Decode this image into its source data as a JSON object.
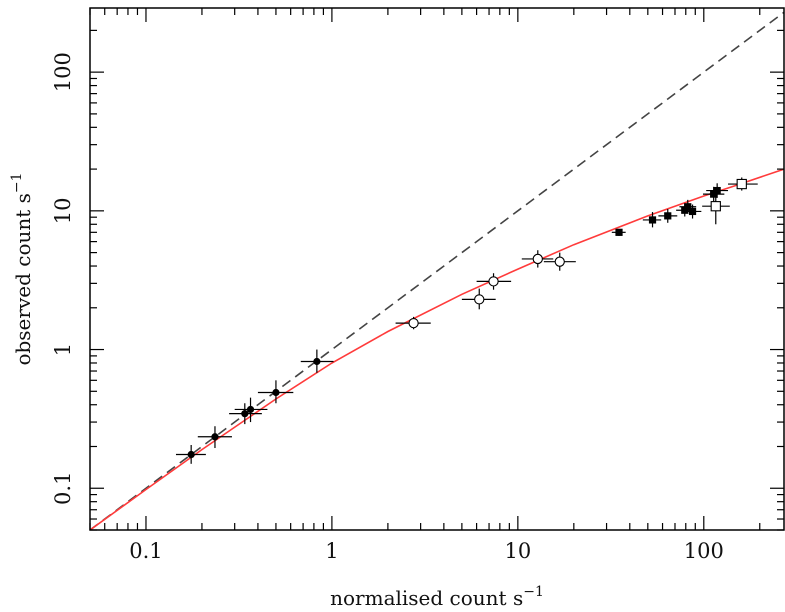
{
  "chart_data": {
    "type": "scatter",
    "xscale": "log",
    "yscale": "log",
    "xlim": [
      0.05,
      270
    ],
    "ylim": [
      0.05,
      290
    ],
    "x_tick_labels": [
      {
        "value": 0.1,
        "label": "0.1"
      },
      {
        "value": 1,
        "label": "1"
      },
      {
        "value": 10,
        "label": "10"
      },
      {
        "value": 100,
        "label": "100"
      }
    ],
    "y_tick_labels": [
      {
        "value": 0.1,
        "label": "0.1"
      },
      {
        "value": 1,
        "label": "1"
      },
      {
        "value": 10,
        "label": "10"
      },
      {
        "value": 100,
        "label": "100"
      }
    ],
    "xlabel": {
      "text": "normalised count s",
      "sup": "−1"
    },
    "ylabel": {
      "text": "observed count s",
      "sup": "−1"
    },
    "grid": false,
    "legend": "none",
    "lines": [
      {
        "style": "dashed",
        "color": "#444444",
        "points": [
          [
            0.05,
            0.05
          ],
          [
            270,
            270
          ]
        ]
      },
      {
        "style": "solid",
        "color": "#ff3b3b",
        "points": [
          [
            0.05,
            0.05
          ],
          [
            0.1,
            0.098
          ],
          [
            0.2,
            0.19
          ],
          [
            0.5,
            0.44
          ],
          [
            1,
            0.8
          ],
          [
            2,
            1.35
          ],
          [
            5,
            2.5
          ],
          [
            10,
            3.8
          ],
          [
            20,
            5.7
          ],
          [
            50,
            9.2
          ],
          [
            100,
            12.8
          ],
          [
            150,
            15.3
          ],
          [
            270,
            20
          ]
        ]
      }
    ],
    "series": [
      {
        "marker": "filled-circle",
        "points": [
          {
            "x": 0.175,
            "y": 0.175,
            "xerr": [
              0.145,
              0.21
            ],
            "yerr": [
              0.15,
              0.205
            ]
          },
          {
            "x": 0.235,
            "y": 0.235,
            "xerr": [
              0.19,
              0.29
            ],
            "yerr": [
              0.195,
              0.28
            ]
          },
          {
            "x": 0.34,
            "y": 0.345,
            "xerr": [
              0.28,
              0.42
            ],
            "yerr": [
              0.29,
              0.41
            ]
          },
          {
            "x": 0.365,
            "y": 0.37,
            "xerr": [
              0.3,
              0.45
            ],
            "yerr": [
              0.3,
              0.45
            ]
          },
          {
            "x": 0.5,
            "y": 0.49,
            "xerr": [
              0.4,
              0.62
            ],
            "yerr": [
              0.41,
              0.6
            ]
          },
          {
            "x": 0.83,
            "y": 0.82,
            "xerr": [
              0.68,
              1.02
            ],
            "yerr": [
              0.68,
              1.0
            ]
          }
        ]
      },
      {
        "marker": "open-circle",
        "points": [
          {
            "x": 2.75,
            "y": 1.55,
            "xerr": [
              2.2,
              3.4
            ],
            "yerr": [
              1.4,
              1.72
            ]
          },
          {
            "x": 6.2,
            "y": 2.3,
            "xerr": [
              5.0,
              7.6
            ],
            "yerr": [
              1.95,
              2.75
            ]
          },
          {
            "x": 7.4,
            "y": 3.1,
            "xerr": [
              6.0,
              9.2
            ],
            "yerr": [
              2.7,
              3.55
            ]
          },
          {
            "x": 12.8,
            "y": 4.5,
            "xerr": [
              10.5,
              15.5
            ],
            "yerr": [
              3.9,
              5.2
            ]
          },
          {
            "x": 16.8,
            "y": 4.3,
            "xerr": [
              13.8,
              20.5
            ],
            "yerr": [
              3.7,
              5.0
            ]
          }
        ]
      },
      {
        "marker": "filled-square",
        "points": [
          {
            "x": 35,
            "y": 7.0,
            "xerr": [
              32,
              38
            ],
            "yerr": [
              6.6,
              7.4
            ]
          },
          {
            "x": 53,
            "y": 8.6,
            "xerr": [
              47,
              59
            ],
            "yerr": [
              7.6,
              9.8
            ]
          },
          {
            "x": 64,
            "y": 9.2,
            "xerr": [
              57,
              72
            ],
            "yerr": [
              8.2,
              10.3
            ]
          },
          {
            "x": 79,
            "y": 10.1,
            "xerr": [
              71,
              88
            ],
            "yerr": [
              9.1,
              11.3
            ]
          },
          {
            "x": 82,
            "y": 10.7,
            "xerr": [
              74,
              91
            ],
            "yerr": [
              9.6,
              12.0
            ]
          },
          {
            "x": 87,
            "y": 9.9,
            "xerr": [
              78,
              97
            ],
            "yerr": [
              8.8,
              11.1
            ]
          },
          {
            "x": 113,
            "y": 13.2,
            "xerr": [
              99,
              129
            ],
            "yerr": [
              11.7,
              14.9
            ]
          },
          {
            "x": 118,
            "y": 14.0,
            "xerr": [
              103,
              135
            ],
            "yerr": [
              12.4,
              15.8
            ]
          }
        ]
      },
      {
        "marker": "open-square",
        "points": [
          {
            "x": 116,
            "y": 10.8,
            "xerr": [
              98,
              138
            ],
            "yerr": [
              8.0,
              13.5
            ]
          },
          {
            "x": 160,
            "y": 15.6,
            "xerr": [
              135,
              195
            ],
            "yerr": [
              14.0,
              17.4
            ]
          }
        ]
      }
    ]
  }
}
